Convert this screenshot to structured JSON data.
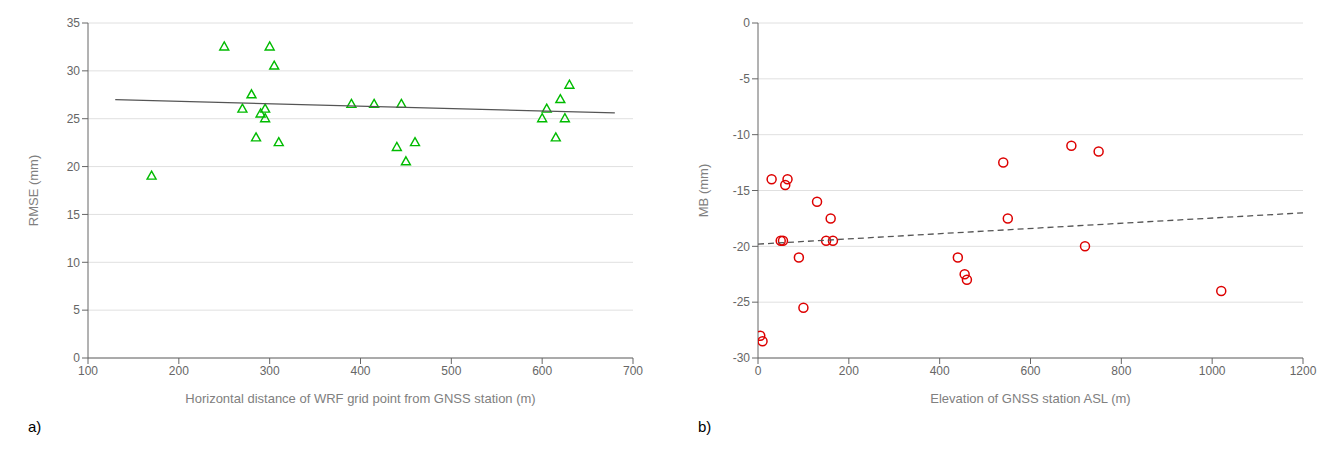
{
  "chart_data": [
    {
      "type": "scatter",
      "xlabel": "Horizontal distance of WRF grid point from GNSS station (m)",
      "ylabel": "RMSE (mm)",
      "annotation": "a)",
      "series": [
        {
          "type": "scatter",
          "marker": "triangle",
          "color": "#00bb00",
          "x": [
            170,
            250,
            270,
            280,
            285,
            290,
            295,
            295,
            300,
            305,
            310,
            390,
            415,
            440,
            445,
            450,
            460,
            600,
            605,
            615,
            620,
            625,
            630
          ],
          "values": [
            19,
            32.5,
            26,
            27.5,
            23,
            25.5,
            25,
            26,
            32.5,
            30.5,
            22.5,
            26.5,
            26.5,
            22,
            26.5,
            20.5,
            22.5,
            25,
            26,
            23,
            27,
            25,
            28.5
          ]
        },
        {
          "type": "line",
          "line_style": "solid",
          "color": "#555555",
          "x": [
            130,
            680
          ],
          "values": [
            27.0,
            25.6
          ]
        }
      ],
      "xlim": [
        100,
        700
      ],
      "ylim": [
        0,
        35
      ],
      "xticks": [
        100,
        200,
        300,
        400,
        500,
        600,
        700
      ],
      "yticks": [
        0,
        5,
        10,
        15,
        20,
        25,
        30,
        35
      ],
      "grid": "y"
    },
    {
      "type": "scatter",
      "xlabel": "Elevation of GNSS station ASL (m)",
      "ylabel": "MB (mm)",
      "annotation": "b)",
      "series": [
        {
          "type": "scatter",
          "marker": "circle",
          "color": "#dd0000",
          "x": [
            5,
            10,
            30,
            50,
            55,
            60,
            65,
            90,
            100,
            130,
            150,
            160,
            165,
            440,
            455,
            460,
            540,
            550,
            690,
            720,
            750,
            1020
          ],
          "values": [
            -28,
            -28.5,
            -14,
            -19.5,
            -19.5,
            -14.5,
            -14,
            -21,
            -25.5,
            -16,
            -19.5,
            -17.5,
            -19.5,
            -21,
            -22.5,
            -23,
            -12.5,
            -17.5,
            -11,
            -20,
            -11.5,
            -24
          ]
        },
        {
          "type": "line",
          "line_style": "dashed",
          "color": "#555555",
          "x": [
            0,
            1200
          ],
          "values": [
            -19.8,
            -17.0
          ]
        }
      ],
      "xlim": [
        0,
        1200
      ],
      "ylim": [
        -30,
        0
      ],
      "xticks": [
        0,
        200,
        400,
        600,
        800,
        1000,
        1200
      ],
      "yticks": [
        0,
        -5,
        -10,
        -15,
        -20,
        -25,
        -30
      ],
      "grid": "y"
    }
  ]
}
